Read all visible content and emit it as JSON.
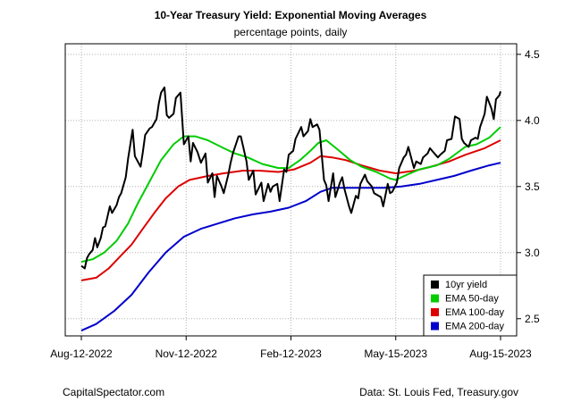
{
  "chart_data": {
    "type": "line",
    "title": "10-Year Treasury Yield: Exponential Moving Averages",
    "subtitle": "percentage points, daily",
    "x_tick_labels": [
      "Aug-12-2022",
      "Nov-12-2022",
      "Feb-12-2023",
      "May-15-2023",
      "Aug-15-2023"
    ],
    "x_tick_dates": [
      "2022-08-12",
      "2022-11-12",
      "2023-02-12",
      "2023-05-15",
      "2023-08-15"
    ],
    "xlim": [
      "2022-08-12",
      "2023-08-15"
    ],
    "y_ticks": [
      2.5,
      3.0,
      3.5,
      4.0,
      4.5
    ],
    "y_tick_labels": [
      "2.5",
      "3.0",
      "3.5",
      "4.0",
      "4.5"
    ],
    "ylim": [
      2.37,
      4.58
    ],
    "y_axis_side": "right",
    "grid": true,
    "legend_position": "bottom-right",
    "series": [
      {
        "name": "10yr yield",
        "color": "#000000",
        "points": [
          [
            "2022-08-12",
            2.9
          ],
          [
            "2022-08-15",
            2.88
          ],
          [
            "2022-08-17",
            2.96
          ],
          [
            "2022-08-19",
            2.99
          ],
          [
            "2022-08-22",
            3.02
          ],
          [
            "2022-08-24",
            3.11
          ],
          [
            "2022-08-26",
            3.04
          ],
          [
            "2022-08-29",
            3.11
          ],
          [
            "2022-08-31",
            3.19
          ],
          [
            "2022-09-02",
            3.2
          ],
          [
            "2022-09-06",
            3.35
          ],
          [
            "2022-09-08",
            3.3
          ],
          [
            "2022-09-12",
            3.36
          ],
          [
            "2022-09-14",
            3.42
          ],
          [
            "2022-09-16",
            3.45
          ],
          [
            "2022-09-20",
            3.57
          ],
          [
            "2022-09-22",
            3.71
          ],
          [
            "2022-09-26",
            3.93
          ],
          [
            "2022-09-28",
            3.73
          ],
          [
            "2022-10-03",
            3.65
          ],
          [
            "2022-10-05",
            3.76
          ],
          [
            "2022-10-07",
            3.89
          ],
          [
            "2022-10-11",
            3.94
          ],
          [
            "2022-10-13",
            3.95
          ],
          [
            "2022-10-17",
            4.01
          ],
          [
            "2022-10-19",
            4.13
          ],
          [
            "2022-10-21",
            4.21
          ],
          [
            "2022-10-24",
            4.25
          ],
          [
            "2022-10-26",
            4.04
          ],
          [
            "2022-10-28",
            4.02
          ],
          [
            "2022-11-01",
            4.05
          ],
          [
            "2022-11-03",
            4.17
          ],
          [
            "2022-11-07",
            4.21
          ],
          [
            "2022-11-10",
            3.82
          ],
          [
            "2022-11-14",
            3.88
          ],
          [
            "2022-11-16",
            3.69
          ],
          [
            "2022-11-18",
            3.83
          ],
          [
            "2022-11-22",
            3.76
          ],
          [
            "2022-11-25",
            3.68
          ],
          [
            "2022-11-29",
            3.75
          ],
          [
            "2022-12-01",
            3.53
          ],
          [
            "2022-12-05",
            3.6
          ],
          [
            "2022-12-07",
            3.42
          ],
          [
            "2022-12-09",
            3.58
          ],
          [
            "2022-12-13",
            3.5
          ],
          [
            "2022-12-15",
            3.45
          ],
          [
            "2022-12-19",
            3.59
          ],
          [
            "2022-12-21",
            3.68
          ],
          [
            "2022-12-23",
            3.75
          ],
          [
            "2022-12-28",
            3.88
          ],
          [
            "2022-12-30",
            3.88
          ],
          [
            "2023-01-04",
            3.69
          ],
          [
            "2023-01-06",
            3.55
          ],
          [
            "2023-01-10",
            3.62
          ],
          [
            "2023-01-12",
            3.44
          ],
          [
            "2023-01-17",
            3.53
          ],
          [
            "2023-01-19",
            3.39
          ],
          [
            "2023-01-23",
            3.52
          ],
          [
            "2023-01-25",
            3.46
          ],
          [
            "2023-01-27",
            3.5
          ],
          [
            "2023-01-31",
            3.52
          ],
          [
            "2023-02-02",
            3.39
          ],
          [
            "2023-02-06",
            3.63
          ],
          [
            "2023-02-08",
            3.61
          ],
          [
            "2023-02-10",
            3.74
          ],
          [
            "2023-02-14",
            3.77
          ],
          [
            "2023-02-16",
            3.86
          ],
          [
            "2023-02-21",
            3.95
          ],
          [
            "2023-02-23",
            3.88
          ],
          [
            "2023-02-27",
            3.92
          ],
          [
            "2023-03-01",
            4.01
          ],
          [
            "2023-03-03",
            3.95
          ],
          [
            "2023-03-07",
            3.97
          ],
          [
            "2023-03-09",
            3.93
          ],
          [
            "2023-03-13",
            3.55
          ],
          [
            "2023-03-15",
            3.51
          ],
          [
            "2023-03-17",
            3.39
          ],
          [
            "2023-03-21",
            3.6
          ],
          [
            "2023-03-23",
            3.42
          ],
          [
            "2023-03-27",
            3.53
          ],
          [
            "2023-03-29",
            3.57
          ],
          [
            "2023-03-31",
            3.48
          ],
          [
            "2023-04-04",
            3.35
          ],
          [
            "2023-04-06",
            3.3
          ],
          [
            "2023-04-10",
            3.43
          ],
          [
            "2023-04-12",
            3.41
          ],
          [
            "2023-04-14",
            3.52
          ],
          [
            "2023-04-18",
            3.59
          ],
          [
            "2023-04-20",
            3.54
          ],
          [
            "2023-04-24",
            3.5
          ],
          [
            "2023-04-26",
            3.45
          ],
          [
            "2023-04-28",
            3.44
          ],
          [
            "2023-05-02",
            3.42
          ],
          [
            "2023-05-04",
            3.35
          ],
          [
            "2023-05-08",
            3.52
          ],
          [
            "2023-05-10",
            3.45
          ],
          [
            "2023-05-12",
            3.46
          ],
          [
            "2023-05-16",
            3.53
          ],
          [
            "2023-05-18",
            3.64
          ],
          [
            "2023-05-22",
            3.72
          ],
          [
            "2023-05-24",
            3.74
          ],
          [
            "2023-05-26",
            3.8
          ],
          [
            "2023-05-31",
            3.64
          ],
          [
            "2023-06-02",
            3.69
          ],
          [
            "2023-06-06",
            3.67
          ],
          [
            "2023-06-08",
            3.72
          ],
          [
            "2023-06-12",
            3.75
          ],
          [
            "2023-06-14",
            3.79
          ],
          [
            "2023-06-16",
            3.77
          ],
          [
            "2023-06-21",
            3.72
          ],
          [
            "2023-06-23",
            3.74
          ],
          [
            "2023-06-27",
            3.77
          ],
          [
            "2023-06-29",
            3.85
          ],
          [
            "2023-07-03",
            3.86
          ],
          [
            "2023-07-06",
            4.03
          ],
          [
            "2023-07-10",
            4.01
          ],
          [
            "2023-07-12",
            3.86
          ],
          [
            "2023-07-14",
            3.83
          ],
          [
            "2023-07-18",
            3.8
          ],
          [
            "2023-07-20",
            3.85
          ],
          [
            "2023-07-24",
            3.87
          ],
          [
            "2023-07-26",
            3.86
          ],
          [
            "2023-07-28",
            3.95
          ],
          [
            "2023-08-01",
            4.05
          ],
          [
            "2023-08-03",
            4.18
          ],
          [
            "2023-08-07",
            4.09
          ],
          [
            "2023-08-09",
            4.01
          ],
          [
            "2023-08-11",
            4.16
          ],
          [
            "2023-08-14",
            4.19
          ],
          [
            "2023-08-15",
            4.22
          ]
        ]
      },
      {
        "name": "EMA 50-day",
        "color": "#00cc00",
        "points": [
          [
            "2022-08-12",
            2.93
          ],
          [
            "2022-08-22",
            2.95
          ],
          [
            "2022-09-01",
            3.0
          ],
          [
            "2022-09-12",
            3.09
          ],
          [
            "2022-09-22",
            3.22
          ],
          [
            "2022-10-01",
            3.38
          ],
          [
            "2022-10-11",
            3.54
          ],
          [
            "2022-10-21",
            3.7
          ],
          [
            "2022-11-01",
            3.82
          ],
          [
            "2022-11-10",
            3.88
          ],
          [
            "2022-11-20",
            3.88
          ],
          [
            "2022-12-01",
            3.85
          ],
          [
            "2022-12-15",
            3.79
          ],
          [
            "2022-12-25",
            3.75
          ],
          [
            "2023-01-05",
            3.72
          ],
          [
            "2023-01-18",
            3.67
          ],
          [
            "2023-02-01",
            3.64
          ],
          [
            "2023-02-10",
            3.64
          ],
          [
            "2023-02-20",
            3.7
          ],
          [
            "2023-03-01",
            3.77
          ],
          [
            "2023-03-08",
            3.83
          ],
          [
            "2023-03-15",
            3.85
          ],
          [
            "2023-03-25",
            3.78
          ],
          [
            "2023-04-05",
            3.7
          ],
          [
            "2023-04-15",
            3.65
          ],
          [
            "2023-04-28",
            3.61
          ],
          [
            "2023-05-10",
            3.56
          ],
          [
            "2023-05-15",
            3.55
          ],
          [
            "2023-05-25",
            3.59
          ],
          [
            "2023-06-05",
            3.63
          ],
          [
            "2023-06-20",
            3.66
          ],
          [
            "2023-07-01",
            3.71
          ],
          [
            "2023-07-15",
            3.8
          ],
          [
            "2023-07-25",
            3.82
          ],
          [
            "2023-08-05",
            3.87
          ],
          [
            "2023-08-15",
            3.95
          ]
        ]
      },
      {
        "name": "EMA 100-day",
        "color": "#dd0000",
        "points": [
          [
            "2022-08-12",
            2.79
          ],
          [
            "2022-08-25",
            2.81
          ],
          [
            "2022-09-05",
            2.88
          ],
          [
            "2022-09-15",
            2.97
          ],
          [
            "2022-09-25",
            3.06
          ],
          [
            "2022-10-05",
            3.18
          ],
          [
            "2022-10-15",
            3.3
          ],
          [
            "2022-10-25",
            3.41
          ],
          [
            "2022-11-05",
            3.5
          ],
          [
            "2022-11-15",
            3.55
          ],
          [
            "2022-12-01",
            3.58
          ],
          [
            "2022-12-15",
            3.6
          ],
          [
            "2023-01-01",
            3.62
          ],
          [
            "2023-01-15",
            3.62
          ],
          [
            "2023-02-01",
            3.61
          ],
          [
            "2023-02-15",
            3.63
          ],
          [
            "2023-03-01",
            3.68
          ],
          [
            "2023-03-10",
            3.73
          ],
          [
            "2023-03-20",
            3.72
          ],
          [
            "2023-04-01",
            3.7
          ],
          [
            "2023-04-15",
            3.66
          ],
          [
            "2023-05-01",
            3.62
          ],
          [
            "2023-05-15",
            3.6
          ],
          [
            "2023-06-01",
            3.62
          ],
          [
            "2023-06-15",
            3.65
          ],
          [
            "2023-07-01",
            3.69
          ],
          [
            "2023-07-15",
            3.74
          ],
          [
            "2023-08-01",
            3.79
          ],
          [
            "2023-08-15",
            3.85
          ]
        ]
      },
      {
        "name": "EMA 200-day",
        "color": "#0000cc",
        "points": [
          [
            "2022-08-12",
            2.41
          ],
          [
            "2022-08-25",
            2.46
          ],
          [
            "2022-09-10",
            2.56
          ],
          [
            "2022-09-25",
            2.68
          ],
          [
            "2022-10-10",
            2.85
          ],
          [
            "2022-10-25",
            3.0
          ],
          [
            "2022-11-10",
            3.12
          ],
          [
            "2022-11-25",
            3.18
          ],
          [
            "2022-12-10",
            3.22
          ],
          [
            "2022-12-25",
            3.26
          ],
          [
            "2023-01-10",
            3.29
          ],
          [
            "2023-01-25",
            3.31
          ],
          [
            "2023-02-10",
            3.34
          ],
          [
            "2023-02-25",
            3.39
          ],
          [
            "2023-03-10",
            3.46
          ],
          [
            "2023-03-20",
            3.49
          ],
          [
            "2023-04-05",
            3.49
          ],
          [
            "2023-04-20",
            3.49
          ],
          [
            "2023-05-05",
            3.49
          ],
          [
            "2023-05-20",
            3.5
          ],
          [
            "2023-06-05",
            3.52
          ],
          [
            "2023-06-20",
            3.55
          ],
          [
            "2023-07-05",
            3.58
          ],
          [
            "2023-07-20",
            3.62
          ],
          [
            "2023-08-05",
            3.66
          ],
          [
            "2023-08-15",
            3.68
          ]
        ]
      }
    ]
  },
  "footer": {
    "left": "CapitalSpectator.com",
    "right": "Data: St. Louis Fed, Treasury.gov"
  }
}
